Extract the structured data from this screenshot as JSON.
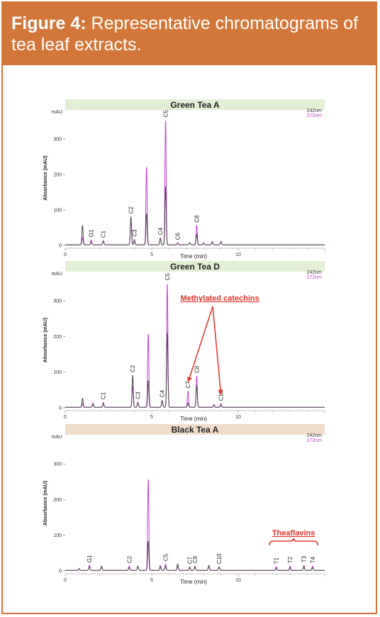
{
  "figure": {
    "label": "Figure 4:",
    "caption": "Representative chromatograms of tea leaf extracts."
  },
  "colors": {
    "header_bg": "#d2763a",
    "trace_242": "#4a4a4a",
    "trace_272": "#c23fd0",
    "annotation": "#e0332a",
    "green_title_bg": "#e3efd4",
    "black_title_bg": "#f0dccb"
  },
  "chart_data": [
    {
      "type": "line",
      "title": "Green Tea A",
      "unit": "mAU",
      "xlabel": "Time (min)",
      "ylabel": "Absorbance (mAU)",
      "xlim": [
        0,
        15
      ],
      "ylim": [
        0,
        380
      ],
      "xticks": [
        0,
        5,
        10
      ],
      "yticks": [
        0,
        100,
        200,
        300
      ],
      "series": [
        {
          "name": "242nm",
          "peaks": [
            [
              1.0,
              55
            ],
            [
              1.5,
              8
            ],
            [
              2.2,
              10
            ],
            [
              3.8,
              80
            ],
            [
              4.0,
              12
            ],
            [
              4.7,
              88
            ],
            [
              5.5,
              18
            ],
            [
              5.8,
              166
            ],
            [
              6.5,
              5
            ],
            [
              7.2,
              6
            ],
            [
              7.6,
              30
            ],
            [
              8.0,
              5
            ],
            [
              8.5,
              8
            ],
            [
              9.0,
              8
            ]
          ]
        },
        {
          "name": "272nm",
          "peaks": [
            [
              1.0,
              20
            ],
            [
              1.5,
              14
            ],
            [
              2.2,
              12
            ],
            [
              3.8,
              70
            ],
            [
              4.0,
              15
            ],
            [
              4.7,
              220
            ],
            [
              5.5,
              20
            ],
            [
              5.8,
              352
            ],
            [
              6.5,
              6
            ],
            [
              7.2,
              6
            ],
            [
              7.6,
              55
            ],
            [
              8.0,
              6
            ],
            [
              8.5,
              10
            ],
            [
              9.0,
              10
            ]
          ]
        }
      ],
      "peak_labels": [
        {
          "label": "G1",
          "x": 1.5
        },
        {
          "label": "C1",
          "x": 2.2
        },
        {
          "label": "C2",
          "x": 3.8
        },
        {
          "label": "C3",
          "x": 4.0
        },
        {
          "label": "C4",
          "x": 5.5
        },
        {
          "label": "C5",
          "x": 5.8
        },
        {
          "label": "C6",
          "x": 6.5
        },
        {
          "label": "C8",
          "x": 7.6
        }
      ]
    },
    {
      "type": "line",
      "title": "Green Tea D",
      "unit": "mAU",
      "xlabel": "Time (min)",
      "ylabel": "Absorbance (mAU)",
      "xlim": [
        0,
        15
      ],
      "ylim": [
        0,
        380
      ],
      "xticks": [
        0,
        5,
        10
      ],
      "yticks": [
        0,
        100,
        200,
        300
      ],
      "series": [
        {
          "name": "242nm",
          "peaks": [
            [
              1.0,
              25
            ],
            [
              1.6,
              8
            ],
            [
              2.2,
              10
            ],
            [
              3.9,
              90
            ],
            [
              4.2,
              12
            ],
            [
              4.8,
              75
            ],
            [
              5.6,
              18
            ],
            [
              5.9,
              210
            ],
            [
              7.1,
              12
            ],
            [
              7.6,
              60
            ],
            [
              8.6,
              6
            ],
            [
              9.0,
              6
            ]
          ]
        },
        {
          "name": "272nm",
          "peaks": [
            [
              1.0,
              10
            ],
            [
              1.6,
              12
            ],
            [
              2.2,
              14
            ],
            [
              3.9,
              60
            ],
            [
              4.2,
              15
            ],
            [
              4.8,
              205
            ],
            [
              5.6,
              20
            ],
            [
              5.9,
              348
            ],
            [
              7.1,
              45
            ],
            [
              7.6,
              88
            ],
            [
              8.6,
              8
            ],
            [
              9.0,
              10
            ]
          ]
        }
      ],
      "peak_labels": [
        {
          "label": "C1",
          "x": 2.2
        },
        {
          "label": "C2",
          "x": 3.9
        },
        {
          "label": "C3",
          "x": 4.2
        },
        {
          "label": "C4",
          "x": 5.6
        },
        {
          "label": "C5",
          "x": 5.9
        },
        {
          "label": "C7",
          "x": 7.1
        },
        {
          "label": "C8",
          "x": 7.6
        },
        {
          "label": "C10",
          "x": 9.0
        }
      ],
      "annotation": {
        "text": "Methylated catechins",
        "arrows_to": [
          {
            "x": 7.1,
            "y": 60
          },
          {
            "x": 9.0,
            "y": 25
          }
        ]
      }
    },
    {
      "type": "line",
      "title": "Black Tea A",
      "unit": "mAU",
      "xlabel": "Time (min)",
      "ylabel": "Absorbance (mAU)",
      "xlim": [
        0,
        15
      ],
      "ylim": [
        0,
        380
      ],
      "xticks": [
        0,
        5,
        10
      ],
      "yticks": [
        0,
        100,
        200,
        300
      ],
      "series": [
        {
          "name": "242nm",
          "peaks": [
            [
              0.8,
              5
            ],
            [
              1.4,
              10
            ],
            [
              2.1,
              12
            ],
            [
              3.7,
              8
            ],
            [
              4.2,
              12
            ],
            [
              4.8,
              82
            ],
            [
              5.5,
              10
            ],
            [
              5.8,
              12
            ],
            [
              6.5,
              18
            ],
            [
              7.2,
              8
            ],
            [
              7.5,
              10
            ],
            [
              8.3,
              14
            ],
            [
              8.9,
              10
            ],
            [
              12.2,
              6
            ],
            [
              13.0,
              8
            ],
            [
              13.8,
              10
            ],
            [
              14.3,
              8
            ]
          ]
        },
        {
          "name": "272nm",
          "peaks": [
            [
              0.8,
              5
            ],
            [
              1.4,
              14
            ],
            [
              2.1,
              10
            ],
            [
              3.7,
              12
            ],
            [
              4.2,
              10
            ],
            [
              4.8,
              255
            ],
            [
              5.5,
              14
            ],
            [
              5.8,
              18
            ],
            [
              6.5,
              12
            ],
            [
              7.2,
              10
            ],
            [
              7.5,
              12
            ],
            [
              8.3,
              10
            ],
            [
              8.9,
              10
            ],
            [
              12.2,
              10
            ],
            [
              13.0,
              12
            ],
            [
              13.8,
              14
            ],
            [
              14.3,
              12
            ]
          ]
        }
      ],
      "peak_labels": [
        {
          "label": "G1",
          "x": 1.4
        },
        {
          "label": "C2",
          "x": 3.7
        },
        {
          "label": "C5",
          "x": 5.8
        },
        {
          "label": "C7",
          "x": 7.2
        },
        {
          "label": "C8",
          "x": 7.5
        },
        {
          "label": "C10",
          "x": 8.9
        },
        {
          "label": "T1",
          "x": 12.2
        },
        {
          "label": "T2",
          "x": 13.0
        },
        {
          "label": "T3",
          "x": 13.8
        },
        {
          "label": "T4",
          "x": 14.3
        }
      ],
      "annotation": {
        "text": "Theaflavins",
        "x_range": [
          11.8,
          14.6
        ]
      }
    }
  ]
}
